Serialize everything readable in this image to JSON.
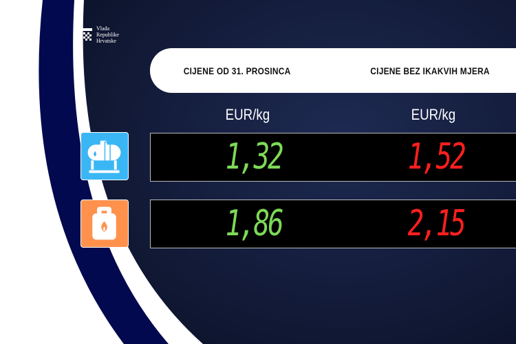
{
  "logo": {
    "lines": [
      "Vlada",
      "Republike",
      "Hrvatske"
    ]
  },
  "header": {
    "col1": "CIJENE OD 31. PROSINCA",
    "col2": "CIJENE BEZ IKAKVIH MJERA"
  },
  "units": {
    "col1": "EUR/kg",
    "col2": "EUR/kg"
  },
  "rows": [
    {
      "icon": "gas-tank-icon",
      "icon_color": "#3bb6f5",
      "current": "1,32",
      "without_measures": "1,52"
    },
    {
      "icon": "gas-cylinder-icon",
      "icon_color": "#ff914d",
      "current": "1,86",
      "without_measures": "2,15"
    }
  ],
  "colors": {
    "green": "#7ed957",
    "red": "#ff1f1f",
    "navy": "#03094f",
    "background": "#141c3a"
  }
}
